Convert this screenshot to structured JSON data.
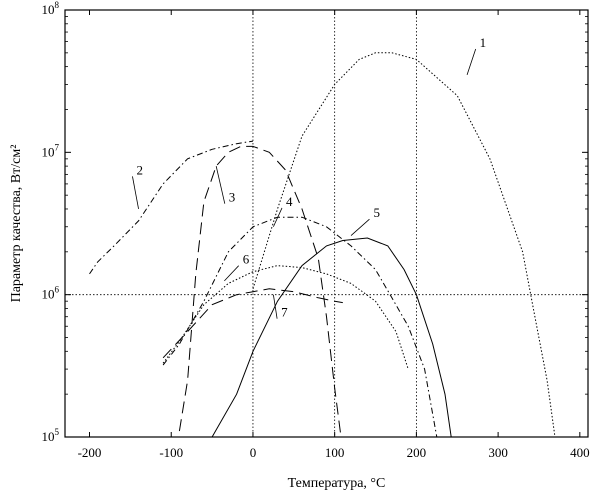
{
  "chart_data": {
    "type": "line",
    "xlabel": "Температура, °C",
    "ylabel": "Параметр качества, Вт/см²",
    "xlim": [
      -230,
      410
    ],
    "ylim": [
      100000,
      100000000
    ],
    "y_scale": "log",
    "x_ticks": [
      -200,
      -100,
      0,
      100,
      200,
      300,
      400
    ],
    "x_tick_labels": [
      "-200",
      "-100",
      "0",
      "100",
      "200",
      "300",
      "400"
    ],
    "y_ticks": [
      100000,
      1000000,
      10000000,
      100000000
    ],
    "y_tick_labels": [
      {
        "base": "10",
        "exp": "5"
      },
      {
        "base": "10",
        "exp": "6"
      },
      {
        "base": "10",
        "exp": "7"
      },
      {
        "base": "10",
        "exp": "8"
      }
    ],
    "reference_lines": {
      "vertical_dotted_x": [
        0,
        100,
        200
      ],
      "horizontal_dotted_y": [
        1000000
      ]
    },
    "grid": false,
    "series": [
      {
        "name": "1",
        "style": "dotted",
        "x": [
          0,
          30,
          60,
          100,
          130,
          150,
          170,
          200,
          250,
          290,
          330,
          345,
          360,
          372
        ],
        "y": [
          1100000,
          4000000,
          13000000,
          30000000,
          45000000,
          50000000,
          50000000,
          45000000,
          25000000,
          9000000,
          2000000,
          700000,
          250000,
          80000
        ]
      },
      {
        "name": "2",
        "style": "dash-dot",
        "x": [
          -200,
          -190,
          -170,
          -140,
          -110,
          -80,
          -50,
          -20,
          0
        ],
        "y": [
          1400000,
          1700000,
          2200000,
          3300000,
          6000000,
          9000000,
          10500000,
          11500000,
          12000000
        ]
      },
      {
        "name": "3",
        "style": "long-dash",
        "x": [
          -90,
          -80,
          -70,
          -60,
          -45,
          -30,
          -15,
          0,
          20,
          40,
          60,
          80,
          90,
          100,
          110
        ],
        "y": [
          110000,
          250000,
          1400000,
          4500000,
          8000000,
          10000000,
          11000000,
          11000000,
          10000000,
          7500000,
          4000000,
          1800000,
          700000,
          220000,
          80000
        ]
      },
      {
        "name": "4",
        "style": "dash-dot",
        "x": [
          -110,
          -90,
          -60,
          -30,
          0,
          30,
          60,
          90,
          120,
          150,
          170,
          190,
          210,
          225
        ],
        "y": [
          320000,
          450000,
          900000,
          2000000,
          3000000,
          3500000,
          3500000,
          3000000,
          2200000,
          1500000,
          950000,
          600000,
          300000,
          100000
        ]
      },
      {
        "name": "5",
        "style": "solid",
        "x": [
          -80,
          -50,
          -20,
          0,
          30,
          60,
          90,
          110,
          140,
          165,
          185,
          200,
          220,
          235,
          245
        ],
        "y": [
          65000,
          100000,
          200000,
          400000,
          900000,
          1600000,
          2200000,
          2400000,
          2500000,
          2200000,
          1500000,
          1000000,
          450000,
          200000,
          80000
        ]
      },
      {
        "name": "6",
        "style": "dotted",
        "x": [
          -110,
          -90,
          -60,
          -30,
          0,
          30,
          60,
          90,
          120,
          150,
          175,
          190
        ],
        "y": [
          330000,
          470000,
          850000,
          1200000,
          1450000,
          1600000,
          1550000,
          1400000,
          1200000,
          900000,
          550000,
          300000
        ]
      },
      {
        "name": "7",
        "style": "long-dash",
        "x": [
          -110,
          -80,
          -50,
          -20,
          0,
          20,
          50,
          80,
          100,
          110
        ],
        "y": [
          360000,
          550000,
          850000,
          1000000,
          1050000,
          1100000,
          1050000,
          950000,
          900000,
          880000
        ]
      }
    ]
  }
}
